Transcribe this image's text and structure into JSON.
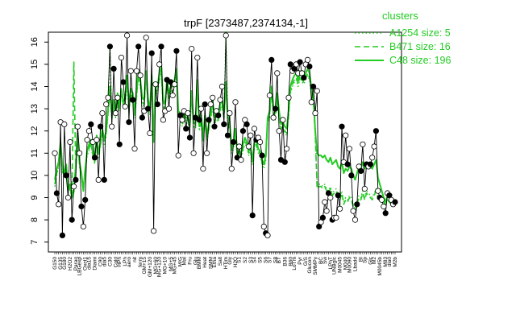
{
  "chart_data": {
    "type": "line",
    "title": "trpF [2373487,2374134,-1]",
    "xlabel": "",
    "ylabel": "",
    "ylim": [
      7,
      16
    ],
    "y_ticks": [
      7,
      8,
      9,
      10,
      11,
      12,
      13,
      14,
      15,
      16
    ],
    "y_tick_labels": [
      "7",
      "8",
      "9",
      "10",
      "11",
      "12",
      "13",
      "14",
      "15",
      "16"
    ],
    "x_tick_labels": [
      "G150",
      "G135",
      "G180",
      "H2O2",
      "Paraq",
      "LBGexp",
      "Oxct1",
      "dia15",
      "Diami",
      "C90",
      "dia5",
      "C30",
      "Cold",
      "HPh",
      "LPh",
      "aero",
      "nit",
      "ferm",
      "GM+15",
      "GM+120",
      "MG+60",
      "MG+120",
      "MG+10",
      "MG+5",
      "MG+45",
      "M/G",
      "Mal",
      "Fru",
      "Glu",
      "BMM",
      "Heat",
      "SMM",
      "Etha",
      "Salt",
      "HTim",
      "Gly",
      "H2O",
      "S1",
      "S2",
      "S3",
      "S4",
      "S5",
      "S6",
      "S7",
      "S8",
      "BT",
      "B36",
      "B60",
      "LoTm",
      "Pyr",
      "G/S",
      "Glucon",
      "SMMPy",
      "BC",
      "Sw",
      "LPhT",
      "UNBglc",
      "M0045",
      "M040",
      "M0090",
      "Lbadd",
      "BI",
      "Sp",
      "Glc",
      "M2",
      "M0045b",
      "M83",
      "dla0",
      "M2b"
    ],
    "legend": {
      "title": "clusters",
      "position": "top-right",
      "entries": [
        {
          "label": "A1254 size: 5",
          "style": "dotted"
        },
        {
          "label": "B471 size: 16",
          "style": "dashed"
        },
        {
          "label": "C48 size: 196",
          "style": "solid"
        }
      ]
    },
    "series": [
      {
        "name": "trpF",
        "values": [
          11.0,
          9.2,
          8.7,
          12.4,
          7.3,
          12.3,
          10.0,
          9.0,
          11.5,
          8.0,
          9.5,
          9.8,
          12.2,
          11.0,
          8.6,
          7.7,
          8.9,
          11.6,
          12.0,
          12.3,
          11.5,
          10.8,
          11.6,
          9.8,
          12.2,
          12.8,
          9.8,
          13.2,
          13.5,
          15.8,
          12.2,
          14.8,
          12.8,
          13.5,
          11.4,
          15.3,
          14.2,
          13.1,
          16.3,
          12.4,
          14.7,
          13.4,
          11.2,
          14.7,
          15.8,
          14.5,
          12.6,
          12.9,
          16.2,
          13.0,
          11.9,
          15.5,
          7.5,
          14.1,
          13.2,
          15.0,
          15.8,
          12.5,
          12.9,
          14.3,
          13.0,
          14.2,
          13.6,
          14.1,
          15.6,
          10.9,
          12.7,
          12.5,
          12.9,
          12.1,
          12.8,
          11.7,
          15.7,
          11.0,
          12.6,
          15.3,
          12.5,
          13.0,
          10.3,
          13.2,
          11.0,
          12.5,
          13.2,
          13.5,
          12.2,
          12.9,
          12.7,
          13.4,
          14.0,
          12.3,
          16.3,
          11.8,
          12.8,
          10.3,
          11.5,
          13.3,
          10.8,
          11.3,
          10.7,
          12.0,
          12.5,
          12.3,
          11.3,
          11.8,
          8.2,
          12.1,
          11.6,
          11.7,
          11.5,
          10.9,
          7.7,
          7.4,
          7.3,
          13.6,
          15.2,
          12.6,
          13.0,
          14.6,
          12.0,
          10.7,
          12.5,
          10.6,
          11.2,
          13.5,
          15.0,
          14.7,
          14.8,
          15.0,
          14.6,
          15.1,
          14.6,
          14.4,
          15.0,
          15.2,
          14.9,
          13.3,
          14.0,
          12.8,
          13.8,
          7.7,
          7.9,
          8.1,
          8.8,
          8.4,
          9.2,
          9.0,
          8.0,
          8.1,
          8.1,
          9.1,
          8.5,
          12.2,
          10.6,
          11.8,
          10.5,
          11.2,
          10.0,
          8.4,
          8.0,
          8.7,
          10.4,
          10.2,
          11.4,
          9.4,
          10.5,
          10.4,
          10.5,
          10.8,
          11.3,
          12.0,
          9.3,
          9.0,
          8.9,
          8.6,
          8.3,
          9.2,
          9.1,
          8.9,
          8.7,
          8.8
        ]
      },
      {
        "name": "C48 size: 196",
        "values": [
          9.8,
          10.3,
          10.6,
          11.5,
          10.4,
          10.1,
          10.5,
          9.4,
          9.6,
          9.0,
          9.3,
          10.4,
          11.9,
          10.6,
          10.1,
          9.3,
          10.3,
          11.1,
          11.4,
          11.6,
          11.0,
          10.7,
          11.8,
          11.0,
          11.5,
          12.1,
          11.6,
          12.0,
          13.0,
          14.0,
          12.8,
          13.4,
          12.8,
          13.7,
          13.1,
          13.9,
          13.3,
          13.5,
          14.5,
          13.2,
          13.9,
          13.7,
          12.8,
          13.8,
          14.7,
          14.3,
          13.5,
          13.4,
          14.7,
          13.5,
          12.9,
          14.5,
          11.5,
          14.0,
          14.0,
          14.6,
          14.9,
          13.4,
          13.2,
          14.3,
          13.7,
          14.0,
          14.0,
          14.3,
          14.8,
          12.9,
          12.8,
          12.4,
          12.9,
          12.6,
          12.6,
          12.3,
          13.8,
          12.4,
          12.3,
          14.3,
          12.3,
          12.7,
          11.7,
          12.7,
          11.8,
          12.3,
          12.8,
          13.4,
          12.6,
          12.8,
          12.7,
          13.2,
          13.4,
          12.8,
          14.2,
          12.7,
          12.4,
          11.2,
          11.4,
          12.1,
          11.0,
          11.1,
          11.0,
          11.4,
          11.7,
          11.5,
          11.1,
          11.2,
          10.7,
          11.5,
          11.6,
          11.2,
          11.1,
          10.7,
          10.5,
          10.9,
          12.6,
          12.9,
          14.0,
          13.1,
          12.8,
          13.7,
          12.9,
          12.3,
          12.4,
          12.2,
          12.1,
          12.9,
          14.0,
          14.3,
          14.5,
          14.6,
          14.3,
          14.7,
          14.5,
          14.4,
          14.6,
          14.8,
          14.6,
          13.9,
          13.6,
          12.0,
          11.0,
          10.9,
          10.9,
          10.8,
          10.9,
          10.7,
          10.6,
          10.8,
          10.5,
          10.6,
          10.7,
          10.4,
          10.3,
          10.6,
          10.1,
          10.3,
          10.2,
          10.4,
          10.3,
          10.0,
          9.8,
          10.1,
          10.4,
          10.3,
          10.6,
          10.3,
          10.6,
          10.5,
          10.4,
          10.3,
          10.5,
          10.7,
          9.9,
          9.6,
          9.3,
          9.0,
          8.8,
          9.1,
          9.0,
          8.9,
          8.8,
          8.9
        ]
      },
      {
        "name": "B471 size: 16",
        "values": [
          9.6,
          10.1,
          10.5,
          11.3,
          10.2,
          10.0,
          10.4,
          9.5,
          9.4,
          9.1,
          15.1,
          10.3,
          11.7,
          10.5,
          10.0,
          9.4,
          10.2,
          11.0,
          11.2,
          11.5,
          10.9,
          10.6,
          11.7,
          10.9,
          11.4,
          12.0,
          11.5,
          11.9,
          12.8,
          13.7,
          12.6,
          13.2,
          12.7,
          13.5,
          13.0,
          13.7,
          13.2,
          13.3,
          14.2,
          13.0,
          13.7,
          13.5,
          12.7,
          13.6,
          14.5,
          14.1,
          13.3,
          13.2,
          14.5,
          13.3,
          12.8,
          14.2,
          11.7,
          13.8,
          13.8,
          14.4,
          14.6,
          13.2,
          13.0,
          14.1,
          13.5,
          13.8,
          13.8,
          14.1,
          14.5,
          12.8,
          12.6,
          12.3,
          12.7,
          12.4,
          12.5,
          12.2,
          13.6,
          12.3,
          12.2,
          14.1,
          12.1,
          12.5,
          11.6,
          12.5,
          11.7,
          12.1,
          12.6,
          13.2,
          12.4,
          12.6,
          12.5,
          13.0,
          13.2,
          12.6,
          14.0,
          12.5,
          12.2,
          11.1,
          11.3,
          11.9,
          10.9,
          11.0,
          10.9,
          11.2,
          11.5,
          11.4,
          11.0,
          11.1,
          10.6,
          11.3,
          11.4,
          11.1,
          11.0,
          10.6,
          10.4,
          10.8,
          12.4,
          12.7,
          13.8,
          12.9,
          12.6,
          13.5,
          12.7,
          12.1,
          12.2,
          12.0,
          11.9,
          12.7,
          13.8,
          14.1,
          14.3,
          14.4,
          14.1,
          14.5,
          14.3,
          14.2,
          14.4,
          14.6,
          14.4,
          13.7,
          13.4,
          11.9,
          9.4,
          9.5,
          9.5,
          9.4,
          9.5,
          9.3,
          9.2,
          9.4,
          9.1,
          9.2,
          9.3,
          9.0,
          8.9,
          9.2,
          8.7,
          8.9,
          8.8,
          9.0,
          8.9,
          8.6,
          8.4,
          8.7,
          9.0,
          8.9,
          9.2,
          8.9,
          9.2,
          9.1,
          9.0,
          8.9,
          9.1,
          9.3,
          9.0,
          8.9,
          8.8,
          8.8,
          8.7,
          8.9,
          8.8,
          8.7,
          8.6,
          8.7
        ]
      },
      {
        "name": "A1254 size: 5",
        "values": [
          9.5,
          10.0,
          10.4,
          11.2,
          10.1,
          9.9,
          10.3,
          9.4,
          9.3,
          9.0,
          9.2,
          10.2,
          11.6,
          10.4,
          9.9,
          9.3,
          10.1,
          10.9,
          11.1,
          11.4,
          10.8,
          10.5,
          11.6,
          10.8,
          11.3,
          11.9,
          11.4,
          11.8,
          12.7,
          15.8,
          12.5,
          13.1,
          12.6,
          13.4,
          12.9,
          13.6,
          13.1,
          13.2,
          14.1,
          12.9,
          13.6,
          13.4,
          12.6,
          13.5,
          14.4,
          14.0,
          13.2,
          13.1,
          14.4,
          13.2,
          12.7,
          14.1,
          11.6,
          13.7,
          13.7,
          14.3,
          14.5,
          13.1,
          12.9,
          14.0,
          13.4,
          13.7,
          13.7,
          14.0,
          14.4,
          12.7,
          12.5,
          12.2,
          12.6,
          12.3,
          12.4,
          12.1,
          13.5,
          12.2,
          12.1,
          14.0,
          12.0,
          12.4,
          11.5,
          12.4,
          11.6,
          12.0,
          12.5,
          13.1,
          12.3,
          12.5,
          12.4,
          12.9,
          13.1,
          12.5,
          16.5,
          12.4,
          12.1,
          11.0,
          11.2,
          11.8,
          10.8,
          10.9,
          10.8,
          11.1,
          11.4,
          11.3,
          10.9,
          11.0,
          10.5,
          11.2,
          11.3,
          11.0,
          10.9,
          10.5,
          10.3,
          10.7,
          12.3,
          12.6,
          13.7,
          12.8,
          12.5,
          13.4,
          12.6,
          12.0,
          12.1,
          11.9,
          11.8,
          12.6,
          13.7,
          14.0,
          14.2,
          14.3,
          14.0,
          14.4,
          14.2,
          14.1,
          14.3,
          14.5,
          14.3,
          13.6,
          13.3,
          11.8,
          9.5,
          9.6,
          9.6,
          9.5,
          9.6,
          9.4,
          9.3,
          9.5,
          9.2,
          9.3,
          9.4,
          9.1,
          9.0,
          9.3,
          8.8,
          9.0,
          8.9,
          9.1,
          9.0,
          8.7,
          8.5,
          8.8,
          9.1,
          9.0,
          9.3,
          9.0,
          9.3,
          9.2,
          9.1,
          9.0,
          9.2,
          9.4,
          9.1,
          9.0,
          8.9,
          8.9,
          8.8,
          9.0,
          8.9,
          8.8,
          8.7,
          8.8
        ]
      }
    ]
  },
  "colors": {
    "cluster": "#22cc22",
    "line": "#000000",
    "background": "#ffffff"
  }
}
